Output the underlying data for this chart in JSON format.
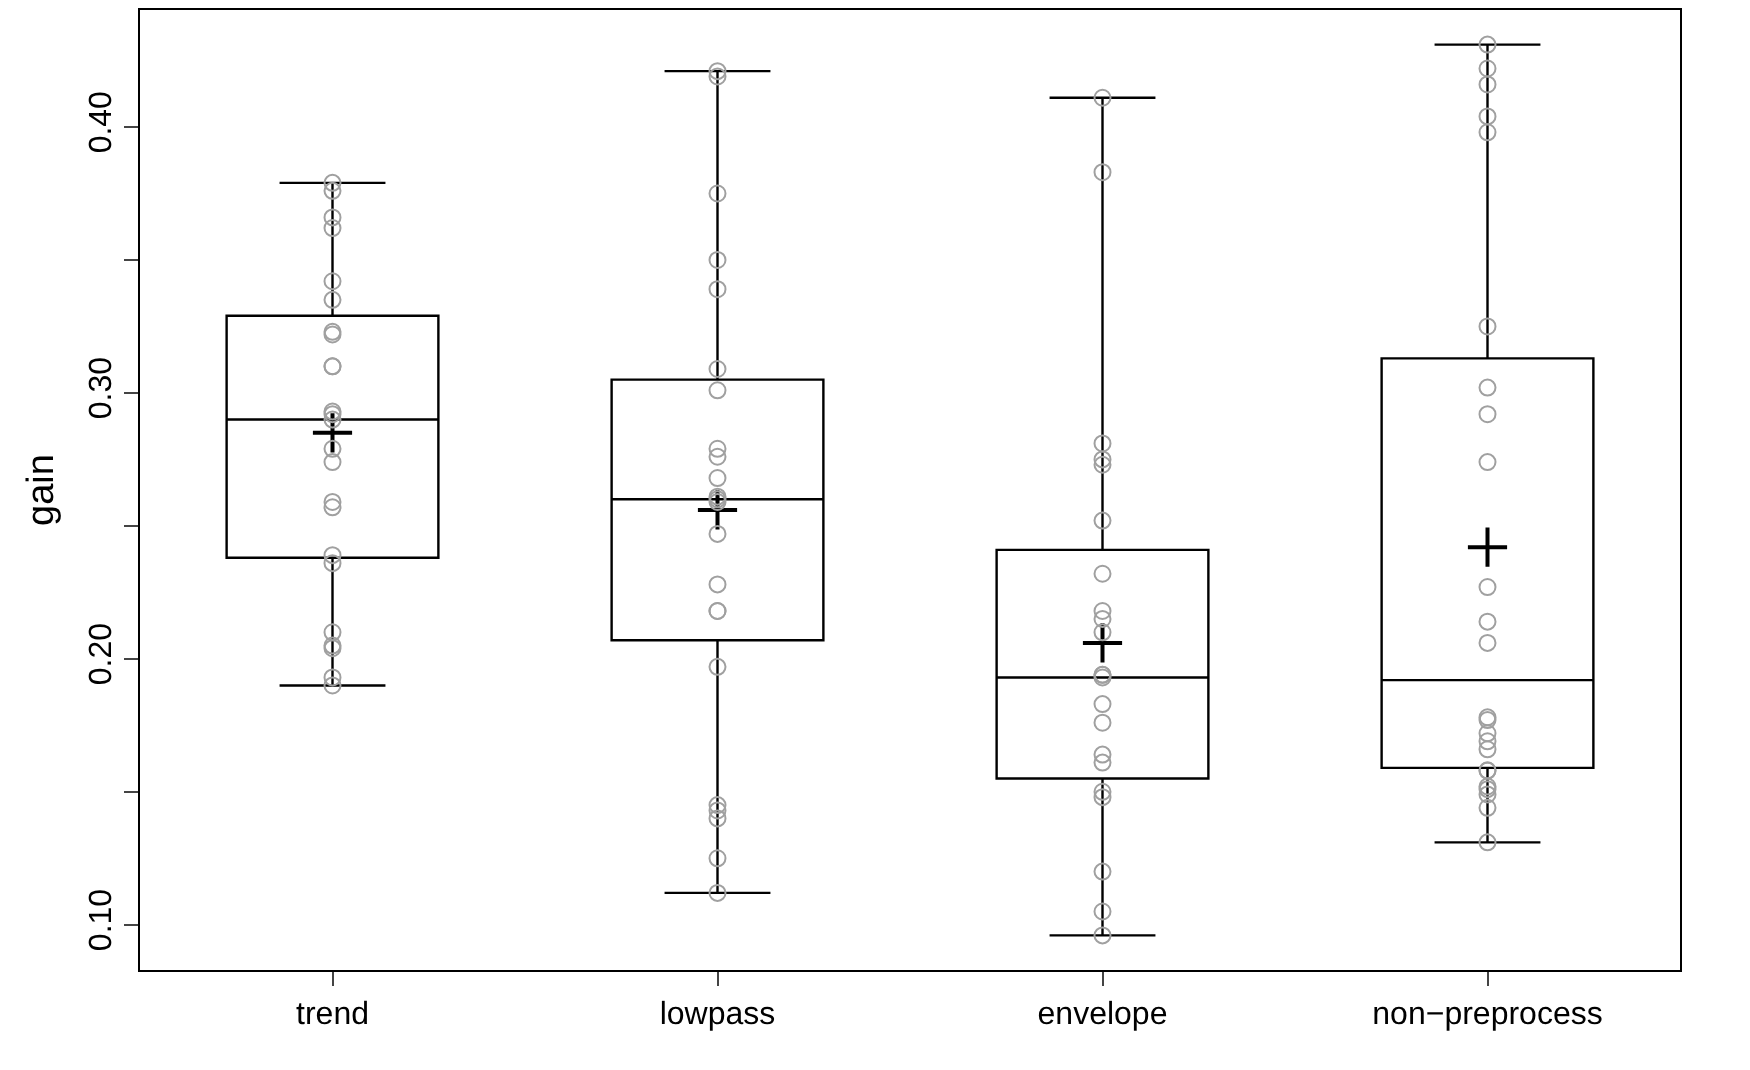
{
  "chart_data": {
    "type": "box",
    "ylabel": "gain",
    "categories": [
      "trend",
      "lowpass",
      "envelope",
      "non−preprocess"
    ],
    "ylim": [
      0.083,
      0.444
    ],
    "yticks": [
      {
        "value": 0.1,
        "label": "0.10"
      },
      {
        "value": 0.15,
        "label": null
      },
      {
        "value": 0.2,
        "label": "0.20"
      },
      {
        "value": 0.25,
        "label": null
      },
      {
        "value": 0.3,
        "label": "0.30"
      },
      {
        "value": 0.35,
        "label": null
      },
      {
        "value": 0.4,
        "label": "0.40"
      }
    ],
    "grid": false,
    "color": "#000000",
    "boxes": [
      {
        "low": 0.19,
        "q1": 0.238,
        "median": 0.29,
        "q3": 0.329,
        "high": 0.379,
        "mean": 0.285
      },
      {
        "low": 0.112,
        "q1": 0.207,
        "median": 0.26,
        "q3": 0.305,
        "high": 0.421,
        "mean": 0.256
      },
      {
        "low": 0.096,
        "q1": 0.155,
        "median": 0.193,
        "q3": 0.241,
        "high": 0.411,
        "mean": 0.206
      },
      {
        "low": 0.131,
        "q1": 0.159,
        "median": 0.192,
        "q3": 0.313,
        "high": 0.431,
        "mean": 0.242
      }
    ],
    "series": [
      {
        "type": "scatter",
        "color": "#a0a0a0",
        "marker": "circle",
        "x": [
          "trend",
          "trend",
          "trend",
          "trend",
          "trend",
          "trend",
          "trend",
          "trend",
          "trend",
          "trend",
          "trend",
          "trend",
          "trend",
          "trend",
          "trend",
          "trend",
          "trend",
          "trend",
          "trend",
          "trend",
          "trend",
          "trend",
          "trend",
          "trend",
          "lowpass",
          "lowpass",
          "lowpass",
          "lowpass",
          "lowpass",
          "lowpass",
          "lowpass",
          "lowpass",
          "lowpass",
          "lowpass",
          "lowpass",
          "lowpass",
          "lowpass",
          "lowpass",
          "lowpass",
          "lowpass",
          "lowpass",
          "lowpass",
          "lowpass",
          "lowpass",
          "lowpass",
          "lowpass",
          "lowpass",
          "envelope",
          "envelope",
          "envelope",
          "envelope",
          "envelope",
          "envelope",
          "envelope",
          "envelope",
          "envelope",
          "envelope",
          "envelope",
          "envelope",
          "envelope",
          "envelope",
          "envelope",
          "envelope",
          "envelope",
          "envelope",
          "envelope",
          "envelope",
          "envelope",
          "envelope",
          "non−preprocess",
          "non−preprocess",
          "non−preprocess",
          "non−preprocess",
          "non−preprocess",
          "non−preprocess",
          "non−preprocess",
          "non−preprocess",
          "non−preprocess",
          "non−preprocess",
          "non−preprocess",
          "non−preprocess",
          "non−preprocess",
          "non−preprocess",
          "non−preprocess",
          "non−preprocess",
          "non−preprocess",
          "non−preprocess",
          "non−preprocess",
          "non−preprocess",
          "non−preprocess",
          "non−preprocess",
          "non−preprocess",
          "non−preprocess"
        ],
        "values": [
          0.379,
          0.376,
          0.366,
          0.362,
          0.342,
          0.335,
          0.323,
          0.322,
          0.31,
          0.31,
          0.293,
          0.292,
          0.29,
          0.279,
          0.274,
          0.259,
          0.257,
          0.239,
          0.236,
          0.21,
          0.205,
          0.204,
          0.193,
          0.19,
          0.421,
          0.419,
          0.375,
          0.35,
          0.339,
          0.309,
          0.301,
          0.279,
          0.276,
          0.268,
          0.261,
          0.26,
          0.259,
          0.247,
          0.228,
          0.218,
          0.218,
          0.197,
          0.145,
          0.143,
          0.14,
          0.125,
          0.112,
          0.411,
          0.383,
          0.281,
          0.275,
          0.273,
          0.252,
          0.232,
          0.218,
          0.215,
          0.21,
          0.194,
          0.194,
          0.193,
          0.183,
          0.176,
          0.164,
          0.161,
          0.15,
          0.148,
          0.12,
          0.105,
          0.096,
          0.431,
          0.422,
          0.416,
          0.404,
          0.398,
          0.325,
          0.302,
          0.292,
          0.274,
          0.227,
          0.214,
          0.206,
          0.178,
          0.177,
          0.172,
          0.169,
          0.166,
          0.158,
          0.158,
          0.152,
          0.151,
          0.149,
          0.144,
          0.131
        ]
      }
    ]
  }
}
